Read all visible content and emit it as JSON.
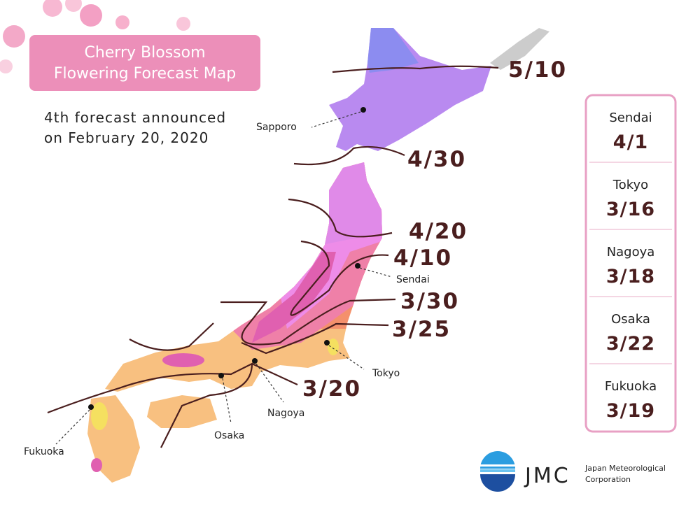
{
  "header": {
    "title_lines": [
      "Cherry Blossom",
      "Flowering Forecast Map"
    ],
    "subtitle_lines": [
      "4th forecast announced",
      "on February 20, 2020"
    ]
  },
  "isolines": [
    "5/10",
    "4/30",
    "4/20",
    "4/10",
    "3/30",
    "3/25",
    "3/20"
  ],
  "cities": [
    "Sapporo",
    "Sendai",
    "Tokyo",
    "Nagoya",
    "Osaka",
    "Fukuoka"
  ],
  "forecast_table": [
    {
      "city": "Sendai",
      "date": "4/1"
    },
    {
      "city": "Tokyo",
      "date": "3/16"
    },
    {
      "city": "Nagoya",
      "date": "3/18"
    },
    {
      "city": "Osaka",
      "date": "3/22"
    },
    {
      "city": "Fukuoka",
      "date": "3/19"
    }
  ],
  "logo": {
    "abbr": "JMC",
    "name_lines": [
      "Japan Meteorological",
      "Corporation"
    ]
  }
}
